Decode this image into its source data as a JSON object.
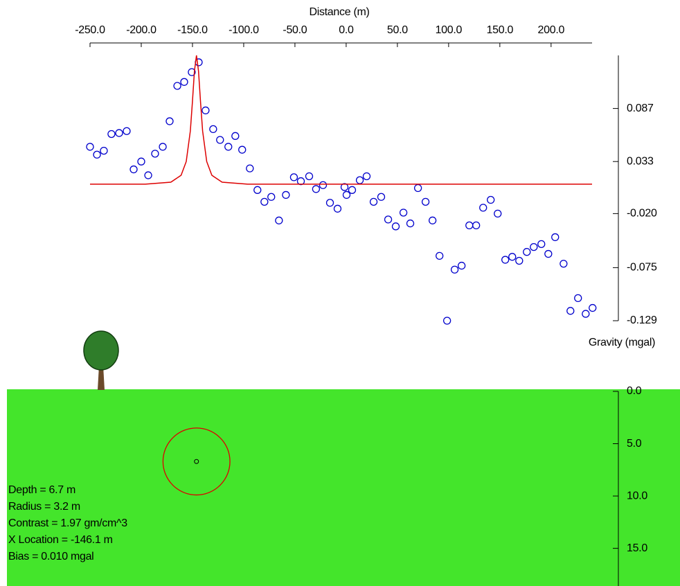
{
  "chart_data": [
    {
      "type": "scatter",
      "x_label": "Distance (m)",
      "y_label": "Gravity (mgal)",
      "xlim": [
        -250,
        240
      ],
      "xticks": [
        {
          "value": -250,
          "label": "-250.0"
        },
        {
          "value": -200,
          "label": "-200.0"
        },
        {
          "value": -150,
          "label": "-150.0"
        },
        {
          "value": -100,
          "label": "-100.0"
        },
        {
          "value": -50,
          "label": "-50.0"
        },
        {
          "value": 0,
          "label": "0.0"
        },
        {
          "value": 50,
          "label": "50.0"
        },
        {
          "value": 100,
          "label": "100.0"
        },
        {
          "value": 150,
          "label": "150.0"
        },
        {
          "value": 200,
          "label": "200.0"
        }
      ],
      "ylim": [
        -0.129,
        0.141
      ],
      "yticks": [
        0.087,
        0.033,
        {
          "value": -0.02,
          "label": "-0.020"
        },
        -0.075,
        -0.129
      ],
      "series": [
        {
          "type": "scatter",
          "color": "#0000cc",
          "x": [
            -250,
            -243.2,
            -236.5,
            -229.1,
            -221.6,
            -214.2,
            -207.4,
            -200.0,
            -193.2,
            -186.5,
            -179.0,
            -172.3,
            -164.8,
            -158.1,
            -150.7,
            -143.9,
            -137.2,
            -129.8,
            -123.1,
            -115.0,
            -108.2,
            -101.5,
            -94.0,
            -86.6,
            -79.8,
            -73.1,
            -65.6,
            -58.8,
            -51.0,
            -44.2,
            -36.1,
            -29.4,
            -22.6,
            -15.8,
            -8.4,
            -1.6,
            0.4,
            5.8,
            13.3,
            20.0,
            26.8,
            34.2,
            41.0,
            48.4,
            55.9,
            62.6,
            70.1,
            77.5,
            84.3,
            91.1,
            98.5,
            105.9,
            112.7,
            120.2,
            126.9,
            133.7,
            141.1,
            147.9,
            155.3,
            162.1,
            168.9,
            176.3,
            183.1,
            190.5,
            197.3,
            204.0,
            212.2,
            218.9,
            226.3,
            233.8,
            240.5
          ],
          "values": [
            0.048,
            0.04,
            0.044,
            0.061,
            0.062,
            0.064,
            0.025,
            0.033,
            0.019,
            0.041,
            0.048,
            0.074,
            0.11,
            0.114,
            0.124,
            0.134,
            0.085,
            0.066,
            0.055,
            0.048,
            0.059,
            0.045,
            0.026,
            0.004,
            -0.008,
            -0.003,
            -0.027,
            -0.001,
            0.017,
            0.013,
            0.018,
            0.005,
            0.009,
            -0.009,
            -0.015,
            0.007,
            -0.001,
            0.004,
            0.014,
            0.018,
            -0.008,
            -0.003,
            -0.026,
            -0.033,
            -0.019,
            -0.03,
            0.006,
            -0.008,
            -0.027,
            -0.063,
            -0.129,
            -0.077,
            -0.073,
            -0.032,
            -0.032,
            -0.014,
            -0.006,
            -0.02,
            -0.067,
            -0.064,
            -0.068,
            -0.059,
            -0.054,
            -0.051,
            -0.061,
            -0.044,
            -0.071,
            -0.119,
            -0.106,
            -0.122,
            -0.116
          ]
        },
        {
          "type": "line",
          "color": "#dd0000",
          "x": [
            -250,
            -196.1,
            -171.1,
            -161.1,
            -156.1,
            -152.1,
            -150.1,
            -148.1,
            -146.1,
            -144.1,
            -142.1,
            -140.1,
            -136.1,
            -131.1,
            -121.1,
            -96.1,
            240
          ],
          "values": [
            0.01,
            0.01,
            0.012,
            0.019,
            0.033,
            0.064,
            0.093,
            0.125,
            0.141,
            0.125,
            0.093,
            0.064,
            0.033,
            0.019,
            0.012,
            0.01,
            0.01
          ]
        }
      ]
    },
    {
      "type": "section",
      "color": "#44e52b",
      "xlim": [
        -250,
        240
      ],
      "ylim": [
        0,
        18.6
      ],
      "yticks": [
        {
          "value": 0,
          "label": "0.0"
        },
        {
          "value": 5,
          "label": "5.0"
        },
        {
          "value": 10,
          "label": "10.0"
        },
        {
          "value": 15,
          "label": "15.0"
        }
      ],
      "sphere": {
        "x": -146.1,
        "depth": 6.7,
        "radius": 3.2,
        "color": "#dd0000"
      },
      "parameter_labels": [
        "Depth = 6.7 m",
        "Radius = 3.2 m",
        "Contrast = 1.97 gm/cm^3",
        "X Location = -146.1 m",
        "Bias = 0.010 mgal"
      ]
    }
  ]
}
